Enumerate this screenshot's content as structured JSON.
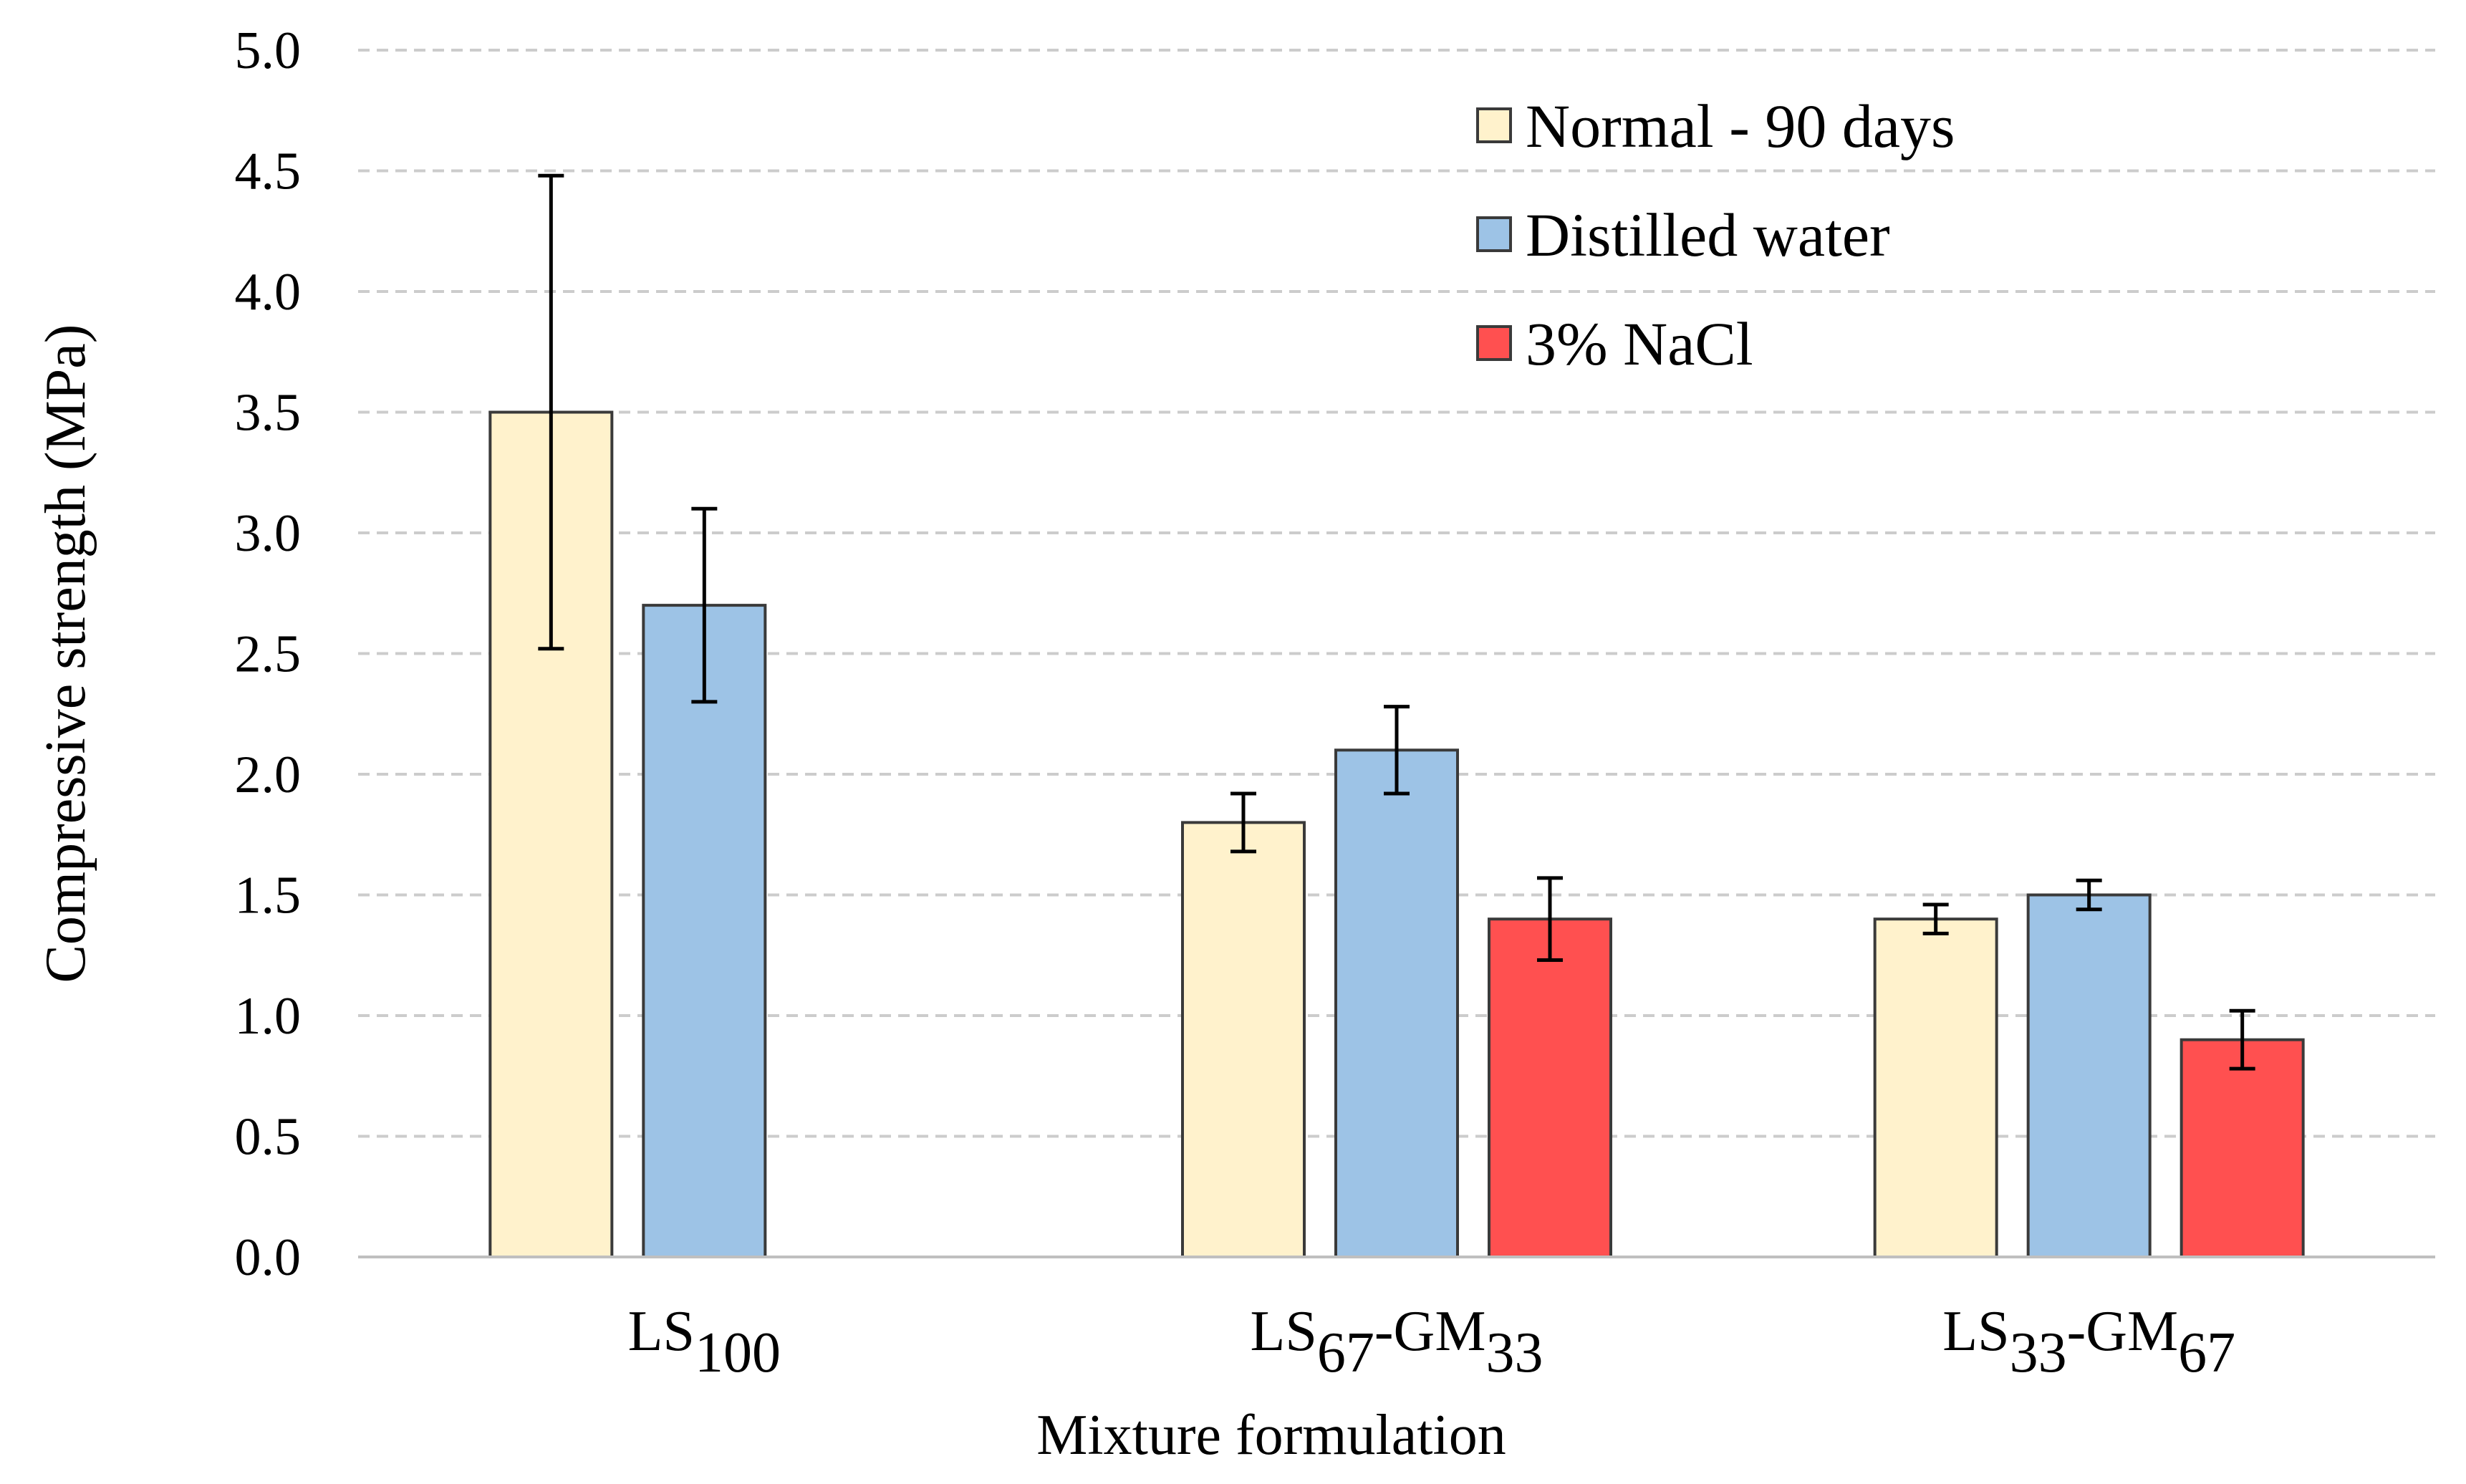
{
  "chart_data": {
    "type": "bar",
    "title": "",
    "xlabel": "Mixture formulation",
    "ylabel": "Compressive strength (MPa)",
    "ylim": [
      0,
      5.0
    ],
    "yticks": [
      "0.0",
      "0.5",
      "1.0",
      "1.5",
      "2.0",
      "2.5",
      "3.0",
      "3.5",
      "4.0",
      "4.5",
      "5.0"
    ],
    "grid": "horizontal dashed",
    "legend_position": "top-right",
    "categories": [
      {
        "base1": "LS",
        "sub1": "100",
        "base2": "",
        "sub2": ""
      },
      {
        "base1": "LS",
        "sub1": "67",
        "base2": "-GM",
        "sub2": "33"
      },
      {
        "base1": "LS",
        "sub1": "33",
        "base2": "-GM",
        "sub2": "67"
      }
    ],
    "series": [
      {
        "name": "Normal - 90 days",
        "color": "#FFF2CC",
        "values": [
          3.5,
          1.8,
          1.4
        ],
        "errors": [
          0.98,
          0.12,
          0.06
        ]
      },
      {
        "name": "Distilled water",
        "color": "#9DC3E6",
        "values": [
          2.7,
          2.1,
          1.5
        ],
        "errors": [
          0.4,
          0.18,
          0.06
        ]
      },
      {
        "name": "3% NaCl",
        "color": "#FF5050",
        "values": [
          null,
          1.4,
          0.9
        ],
        "errors": [
          null,
          0.17,
          0.12
        ]
      }
    ]
  }
}
